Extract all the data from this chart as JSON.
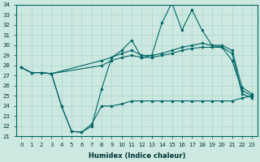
{
  "xlabel": "Humidex (Indice chaleur)",
  "bg_color": "#cce8e0",
  "grid_color": "#aad4cc",
  "line_color": "#006666",
  "ylim": [
    21,
    34
  ],
  "xlim": [
    -0.5,
    23.5
  ],
  "yticks": [
    21,
    22,
    23,
    24,
    25,
    26,
    27,
    28,
    29,
    30,
    31,
    32,
    33,
    34
  ],
  "xticks": [
    0,
    1,
    2,
    3,
    4,
    5,
    6,
    7,
    8,
    9,
    10,
    11,
    12,
    13,
    14,
    15,
    16,
    17,
    18,
    19,
    20,
    21,
    22,
    23
  ],
  "line1_x": [
    0,
    1,
    2,
    3,
    4,
    5,
    6,
    7,
    8,
    9,
    10,
    11,
    12,
    13,
    14,
    15,
    16,
    17,
    18,
    19,
    20,
    21,
    22,
    23
  ],
  "line1_y": [
    27.8,
    27.3,
    27.3,
    27.2,
    24.0,
    21.5,
    21.4,
    22.0,
    25.7,
    28.8,
    29.5,
    30.5,
    28.8,
    29.0,
    32.2,
    34.2,
    31.5,
    33.5,
    31.5,
    30.0,
    29.8,
    28.5,
    25.5,
    25.0
  ],
  "line2_x": [
    0,
    1,
    2,
    3,
    8,
    9,
    10,
    11,
    12,
    13,
    14,
    15,
    16,
    17,
    18,
    19,
    20,
    21,
    22,
    23
  ],
  "line2_y": [
    27.8,
    27.3,
    27.3,
    27.2,
    28.5,
    28.8,
    29.2,
    29.5,
    29.0,
    29.0,
    29.2,
    29.5,
    29.8,
    30.0,
    30.2,
    30.0,
    30.0,
    29.5,
    25.8,
    25.2
  ],
  "line3_x": [
    0,
    1,
    2,
    3,
    8,
    9,
    10,
    11,
    12,
    13,
    14,
    15,
    16,
    17,
    18,
    19,
    20,
    21,
    22,
    23
  ],
  "line3_y": [
    27.8,
    27.3,
    27.3,
    27.2,
    28.0,
    28.5,
    28.8,
    29.0,
    28.8,
    28.8,
    29.0,
    29.2,
    29.5,
    29.7,
    29.8,
    29.8,
    29.8,
    29.2,
    25.2,
    24.8
  ],
  "line4_x": [
    3,
    4,
    5,
    6,
    7,
    8,
    9,
    10,
    11,
    12,
    13,
    14,
    15,
    16,
    17,
    18,
    19,
    20,
    21,
    22,
    23
  ],
  "line4_y": [
    27.2,
    24.0,
    21.5,
    21.4,
    22.2,
    24.0,
    24.0,
    24.2,
    24.5,
    24.5,
    24.5,
    24.5,
    24.5,
    24.5,
    24.5,
    24.5,
    24.5,
    24.5,
    24.5,
    24.8,
    25.0
  ],
  "marker_size": 2.5
}
